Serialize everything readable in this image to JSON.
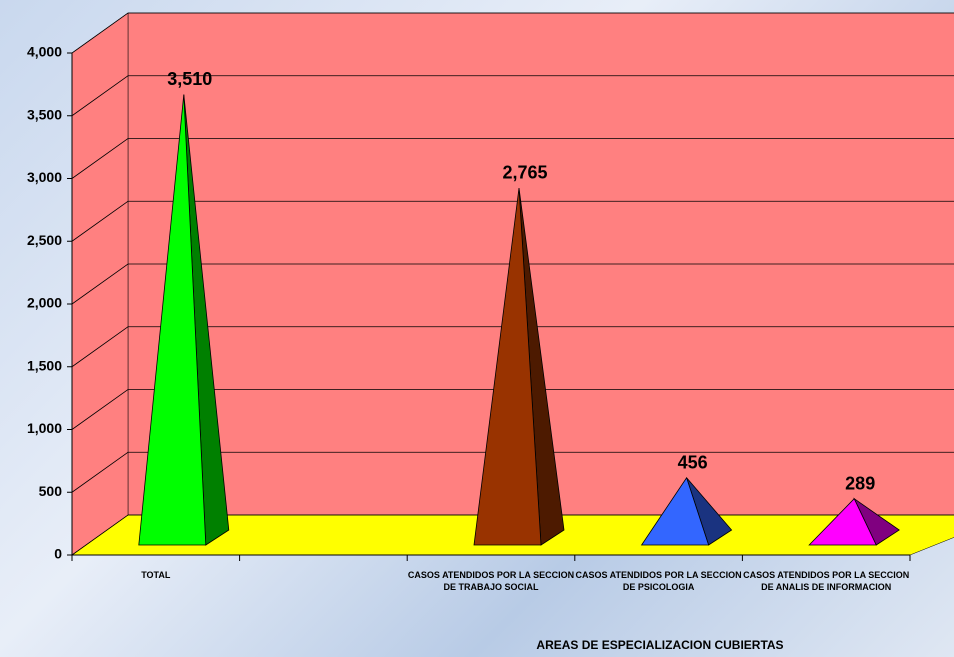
{
  "chart_data": {
    "type": "pyramid3d",
    "categories": [
      "TOTAL",
      null,
      "CASOS ATENDIDOS POR LA SECCION DE TRABAJO SOCIAL",
      "CASOS ATENDIDOS POR LA SECCION DE PSICOLOGIA",
      "CASOS ATENDIDOS POR LA SECCION DE ANALIS DE INFORMACION"
    ],
    "values": [
      3510,
      null,
      2765,
      456,
      289
    ],
    "value_labels": [
      "3,510",
      null,
      "2,765",
      "456",
      "289"
    ],
    "colors": [
      "#00ff00",
      null,
      "#993300",
      "#3366ff",
      "#ff00ff"
    ],
    "side_colors": [
      "#008000",
      null,
      "#4d1a00",
      "#1a3380",
      "#800080"
    ],
    "x_label": "AREAS DE ESPECIALIZACION CUBIERTAS",
    "ylim": [
      0,
      4000
    ],
    "yticks": [
      0,
      500,
      {
        "value": 1000,
        "label": "1,000"
      },
      {
        "value": 1500,
        "label": "1,500"
      },
      {
        "value": 2000,
        "label": "2,000"
      },
      {
        "value": 2500,
        "label": "2,500"
      },
      {
        "value": 3000,
        "label": "3,000"
      },
      {
        "value": 3500,
        "label": "3,500"
      },
      {
        "value": 4000,
        "label": "4,000"
      }
    ],
    "wall_color": "#ff8080",
    "floor_color": "#ffff00",
    "grid": true
  }
}
